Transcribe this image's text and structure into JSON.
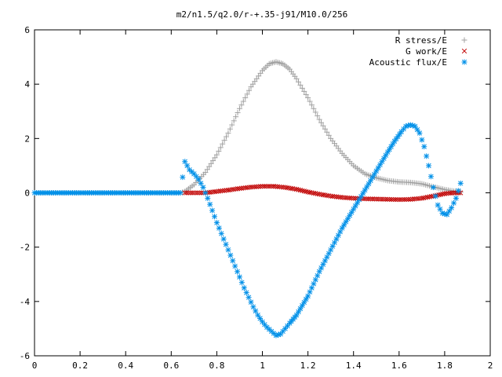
{
  "chart_data": {
    "type": "scatter",
    "title": "m2/n1.5/q2.0/r-+.35-j91/M10.0/256",
    "xlabel": "",
    "ylabel": "",
    "xlim": [
      0,
      2
    ],
    "ylim": [
      -6,
      6
    ],
    "x_ticks": [
      "0",
      "0.2",
      "0.4",
      "0.6",
      "0.8",
      "1",
      "1.2",
      "1.4",
      "1.6",
      "1.8",
      "2"
    ],
    "y_ticks": [
      "-6",
      "-4",
      "-2",
      "0",
      "2",
      "4",
      "6"
    ],
    "grid": false,
    "legend_position": "top-right",
    "series": [
      {
        "name": "R stress/E",
        "marker": "plus",
        "color": "#a0a0a0",
        "x": [
          0.0,
          0.05,
          0.1,
          0.15,
          0.2,
          0.25,
          0.3,
          0.35,
          0.4,
          0.45,
          0.5,
          0.55,
          0.6,
          0.64,
          0.66,
          0.7,
          0.75,
          0.8,
          0.85,
          0.9,
          0.95,
          1.0,
          1.03,
          1.06,
          1.09,
          1.12,
          1.15,
          1.2,
          1.25,
          1.3,
          1.35,
          1.4,
          1.45,
          1.5,
          1.55,
          1.6,
          1.65,
          1.7,
          1.75,
          1.8,
          1.84,
          1.87
        ],
        "y": [
          0.0,
          0.0,
          0.0,
          0.0,
          0.0,
          0.0,
          0.0,
          0.0,
          0.0,
          0.0,
          0.0,
          0.0,
          0.0,
          0.0,
          0.05,
          0.3,
          0.75,
          1.4,
          2.2,
          3.1,
          3.9,
          4.5,
          4.75,
          4.82,
          4.75,
          4.55,
          4.2,
          3.5,
          2.7,
          2.0,
          1.45,
          1.0,
          0.7,
          0.55,
          0.45,
          0.4,
          0.38,
          0.33,
          0.22,
          0.12,
          0.06,
          0.03
        ]
      },
      {
        "name": "G work/E",
        "marker": "cross",
        "color": "#c00000",
        "x": [
          0.66,
          0.7,
          0.75,
          0.8,
          0.85,
          0.9,
          0.95,
          1.0,
          1.05,
          1.1,
          1.15,
          1.2,
          1.25,
          1.3,
          1.35,
          1.4,
          1.45,
          1.5,
          1.55,
          1.6,
          1.65,
          1.7,
          1.75,
          1.8,
          1.84,
          1.87
        ],
        "y": [
          0.0,
          0.0,
          0.0,
          0.05,
          0.1,
          0.16,
          0.21,
          0.24,
          0.24,
          0.2,
          0.13,
          0.03,
          -0.05,
          -0.12,
          -0.17,
          -0.2,
          -0.22,
          -0.23,
          -0.24,
          -0.25,
          -0.24,
          -0.2,
          -0.12,
          -0.03,
          0.0,
          0.0
        ]
      },
      {
        "name": "Acoustic flux/E",
        "marker": "star",
        "color": "#0090e8",
        "x": [
          0.0,
          0.05,
          0.1,
          0.15,
          0.2,
          0.25,
          0.3,
          0.35,
          0.4,
          0.45,
          0.5,
          0.55,
          0.6,
          0.64,
          0.66,
          0.68,
          0.7,
          0.72,
          0.74,
          0.76,
          0.78,
          0.8,
          0.82,
          0.84,
          0.86,
          0.88,
          0.9,
          0.92,
          0.94,
          0.96,
          0.98,
          1.0,
          1.02,
          1.04,
          1.06,
          1.08,
          1.1,
          1.12,
          1.15,
          1.2,
          1.25,
          1.3,
          1.35,
          1.4,
          1.45,
          1.5,
          1.55,
          1.58,
          1.61,
          1.63,
          1.65,
          1.67,
          1.69,
          1.71,
          1.73,
          1.75,
          1.77,
          1.79,
          1.81,
          1.83,
          1.85,
          1.87
        ],
        "y": [
          0.0,
          0.0,
          0.0,
          0.0,
          0.0,
          0.0,
          0.0,
          0.0,
          0.0,
          0.0,
          0.0,
          0.0,
          0.0,
          0.0,
          1.15,
          0.85,
          0.7,
          0.5,
          0.2,
          -0.2,
          -0.65,
          -1.1,
          -1.5,
          -1.9,
          -2.3,
          -2.7,
          -3.1,
          -3.5,
          -3.85,
          -4.2,
          -4.5,
          -4.75,
          -4.95,
          -5.1,
          -5.25,
          -5.2,
          -5.0,
          -4.8,
          -4.5,
          -3.8,
          -2.9,
          -2.1,
          -1.3,
          -0.6,
          0.1,
          0.8,
          1.5,
          1.9,
          2.25,
          2.45,
          2.5,
          2.45,
          2.2,
          1.7,
          1.0,
          0.2,
          -0.45,
          -0.75,
          -0.8,
          -0.55,
          -0.2,
          0.35
        ]
      }
    ]
  }
}
